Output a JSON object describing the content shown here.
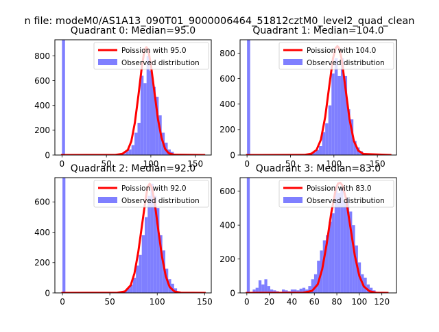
{
  "figure": {
    "suptitle": "n file: modeM0/AS1A13_090T01_9000006464_51812cztM0_level2_quad_clean"
  },
  "chart_data": [
    {
      "type": "bar",
      "title": "Quadrant 0: Median=95.0",
      "xlim": [
        -8,
        168
      ],
      "ylim": [
        0,
        930
      ],
      "xticks": [
        0,
        50,
        100,
        150
      ],
      "yticks": [
        0,
        200,
        400,
        600,
        800
      ],
      "bin_width": 3.4,
      "legend": {
        "placement": "top-right",
        "entries": [
          "Poission with 95.0",
          "Observed distribution"
        ]
      },
      "series": [
        {
          "name": "Observed distribution",
          "kind": "histogram",
          "color": "#7f7fff",
          "bins": [
            {
              "x": 0,
              "y": 930
            },
            {
              "x": 64.6,
              "y": 4
            },
            {
              "x": 68,
              "y": 10
            },
            {
              "x": 71.4,
              "y": 28
            },
            {
              "x": 74.8,
              "y": 45
            },
            {
              "x": 78.2,
              "y": 80
            },
            {
              "x": 81.6,
              "y": 180
            },
            {
              "x": 85,
              "y": 260
            },
            {
              "x": 88.4,
              "y": 640
            },
            {
              "x": 91.8,
              "y": 580
            },
            {
              "x": 95.2,
              "y": 800
            },
            {
              "x": 98.6,
              "y": 680
            },
            {
              "x": 102,
              "y": 550
            },
            {
              "x": 105.4,
              "y": 470
            },
            {
              "x": 108.8,
              "y": 320
            },
            {
              "x": 112.2,
              "y": 180
            },
            {
              "x": 115.6,
              "y": 100
            },
            {
              "x": 119,
              "y": 45
            },
            {
              "x": 122.4,
              "y": 25
            },
            {
              "x": 125.8,
              "y": 8
            }
          ]
        },
        {
          "name": "Poission with 95.0",
          "kind": "line",
          "color": "#ff0000",
          "points": [
            {
              "x": 0,
              "y": 0
            },
            {
              "x": 60,
              "y": 1
            },
            {
              "x": 68,
              "y": 10
            },
            {
              "x": 74,
              "y": 40
            },
            {
              "x": 78,
              "y": 110
            },
            {
              "x": 82,
              "y": 260
            },
            {
              "x": 86,
              "y": 480
            },
            {
              "x": 90,
              "y": 720
            },
            {
              "x": 93,
              "y": 850
            },
            {
              "x": 95,
              "y": 870
            },
            {
              "x": 97,
              "y": 850
            },
            {
              "x": 100,
              "y": 730
            },
            {
              "x": 104,
              "y": 510
            },
            {
              "x": 108,
              "y": 290
            },
            {
              "x": 112,
              "y": 140
            },
            {
              "x": 116,
              "y": 50
            },
            {
              "x": 120,
              "y": 15
            },
            {
              "x": 126,
              "y": 3
            },
            {
              "x": 160,
              "y": 0
            }
          ]
        }
      ]
    },
    {
      "type": "bar",
      "title": "Quadrant 1: Median=104.0",
      "xlim": [
        -8,
        172
      ],
      "ylim": [
        0,
        905
      ],
      "xticks": [
        0,
        50,
        100,
        150
      ],
      "yticks": [
        0,
        200,
        400,
        600,
        800
      ],
      "bin_width": 3.6,
      "legend": {
        "placement": "top-right",
        "entries": [
          "Poission with 104.0",
          "Observed distribution"
        ]
      },
      "series": [
        {
          "name": "Observed distribution",
          "kind": "histogram",
          "color": "#7f7fff",
          "bins": [
            {
              "x": 0,
              "y": 905
            },
            {
              "x": 68.4,
              "y": 4
            },
            {
              "x": 72,
              "y": 10
            },
            {
              "x": 75.6,
              "y": 20
            },
            {
              "x": 79.2,
              "y": 40
            },
            {
              "x": 82.8,
              "y": 70
            },
            {
              "x": 86.4,
              "y": 180
            },
            {
              "x": 90,
              "y": 250
            },
            {
              "x": 93.6,
              "y": 390
            },
            {
              "x": 97.2,
              "y": 640
            },
            {
              "x": 100.8,
              "y": 760
            },
            {
              "x": 104.4,
              "y": 620
            },
            {
              "x": 108,
              "y": 760
            },
            {
              "x": 111.6,
              "y": 620
            },
            {
              "x": 115.2,
              "y": 360
            },
            {
              "x": 118.8,
              "y": 280
            },
            {
              "x": 122.4,
              "y": 110
            },
            {
              "x": 126,
              "y": 60
            },
            {
              "x": 129.6,
              "y": 30
            },
            {
              "x": 133.2,
              "y": 15
            },
            {
              "x": 136.8,
              "y": 5
            }
          ]
        },
        {
          "name": "Poission with 104.0",
          "kind": "line",
          "color": "#ff0000",
          "points": [
            {
              "x": 0,
              "y": 0
            },
            {
              "x": 66,
              "y": 1
            },
            {
              "x": 74,
              "y": 10
            },
            {
              "x": 80,
              "y": 40
            },
            {
              "x": 85,
              "y": 120
            },
            {
              "x": 90,
              "y": 300
            },
            {
              "x": 95,
              "y": 560
            },
            {
              "x": 99,
              "y": 760
            },
            {
              "x": 102,
              "y": 840
            },
            {
              "x": 104,
              "y": 855
            },
            {
              "x": 106,
              "y": 840
            },
            {
              "x": 109,
              "y": 750
            },
            {
              "x": 113,
              "y": 540
            },
            {
              "x": 118,
              "y": 280
            },
            {
              "x": 123,
              "y": 110
            },
            {
              "x": 128,
              "y": 35
            },
            {
              "x": 134,
              "y": 8
            },
            {
              "x": 165,
              "y": 0
            }
          ]
        }
      ]
    },
    {
      "type": "bar",
      "title": "Quadrant 2: Median=92.0",
      "xlim": [
        -8,
        157
      ],
      "ylim": [
        0,
        760
      ],
      "xticks": [
        0,
        50,
        100,
        150
      ],
      "yticks": [
        0,
        200,
        400,
        600
      ],
      "bin_width": 3.1,
      "legend": {
        "placement": "top-right",
        "entries": [
          "Poission with 92.0",
          "Observed distribution"
        ]
      },
      "series": [
        {
          "name": "Observed distribution",
          "kind": "histogram",
          "color": "#7f7fff",
          "bins": [
            {
              "x": 0,
              "y": 760
            },
            {
              "x": 62,
              "y": 5
            },
            {
              "x": 65.1,
              "y": 15
            },
            {
              "x": 68.2,
              "y": 30
            },
            {
              "x": 71.3,
              "y": 55
            },
            {
              "x": 74.4,
              "y": 100
            },
            {
              "x": 77.5,
              "y": 180
            },
            {
              "x": 80.6,
              "y": 250
            },
            {
              "x": 83.7,
              "y": 380
            },
            {
              "x": 86.8,
              "y": 500
            },
            {
              "x": 89.9,
              "y": 640
            },
            {
              "x": 93,
              "y": 720
            },
            {
              "x": 96.1,
              "y": 640
            },
            {
              "x": 99.2,
              "y": 560
            },
            {
              "x": 102.3,
              "y": 380
            },
            {
              "x": 105.4,
              "y": 280
            },
            {
              "x": 108.5,
              "y": 160
            },
            {
              "x": 111.6,
              "y": 90
            },
            {
              "x": 114.7,
              "y": 60
            },
            {
              "x": 117.8,
              "y": 30
            },
            {
              "x": 120.9,
              "y": 10
            }
          ]
        },
        {
          "name": "Poission with 92.0",
          "kind": "line",
          "color": "#ff0000",
          "points": [
            {
              "x": 0,
              "y": 0
            },
            {
              "x": 58,
              "y": 1
            },
            {
              "x": 66,
              "y": 10
            },
            {
              "x": 72,
              "y": 50
            },
            {
              "x": 76,
              "y": 130
            },
            {
              "x": 80,
              "y": 270
            },
            {
              "x": 84,
              "y": 450
            },
            {
              "x": 88,
              "y": 630
            },
            {
              "x": 90,
              "y": 700
            },
            {
              "x": 92,
              "y": 720
            },
            {
              "x": 94,
              "y": 700
            },
            {
              "x": 97,
              "y": 610
            },
            {
              "x": 101,
              "y": 420
            },
            {
              "x": 105,
              "y": 240
            },
            {
              "x": 109,
              "y": 110
            },
            {
              "x": 113,
              "y": 40
            },
            {
              "x": 118,
              "y": 10
            },
            {
              "x": 125,
              "y": 1
            },
            {
              "x": 150,
              "y": 0
            }
          ]
        }
      ]
    },
    {
      "type": "bar",
      "title": "Quadrant 3: Median=83.0",
      "xlim": [
        -6,
        133
      ],
      "ylim": [
        0,
        680
      ],
      "xticks": [
        0,
        20,
        40,
        60,
        80,
        100,
        120
      ],
      "yticks": [
        0,
        200,
        400,
        600
      ],
      "bin_width": 2.6,
      "legend": {
        "placement": "top-right",
        "entries": [
          "Poission with 83.0",
          "Observed distribution"
        ]
      },
      "series": [
        {
          "name": "Observed distribution",
          "kind": "histogram",
          "color": "#7f7fff",
          "bins": [
            {
              "x": 0,
              "y": 680
            },
            {
              "x": 5.2,
              "y": 20
            },
            {
              "x": 7.8,
              "y": 30
            },
            {
              "x": 10.4,
              "y": 75
            },
            {
              "x": 13,
              "y": 50
            },
            {
              "x": 15.6,
              "y": 80
            },
            {
              "x": 18.2,
              "y": 40
            },
            {
              "x": 20.8,
              "y": 20
            },
            {
              "x": 23.4,
              "y": 15
            },
            {
              "x": 26,
              "y": 10
            },
            {
              "x": 28.6,
              "y": 5
            },
            {
              "x": 31.2,
              "y": 20
            },
            {
              "x": 33.8,
              "y": 15
            },
            {
              "x": 36.4,
              "y": 10
            },
            {
              "x": 39,
              "y": 20
            },
            {
              "x": 41.6,
              "y": 20
            },
            {
              "x": 44.2,
              "y": 15
            },
            {
              "x": 46.8,
              "y": 25
            },
            {
              "x": 49.4,
              "y": 30
            },
            {
              "x": 52,
              "y": 20
            },
            {
              "x": 54.6,
              "y": 40
            },
            {
              "x": 57.2,
              "y": 80
            },
            {
              "x": 59.8,
              "y": 110
            },
            {
              "x": 62.4,
              "y": 190
            },
            {
              "x": 65,
              "y": 250
            },
            {
              "x": 67.6,
              "y": 310
            },
            {
              "x": 70.2,
              "y": 340
            },
            {
              "x": 72.8,
              "y": 420
            },
            {
              "x": 75.4,
              "y": 470
            },
            {
              "x": 78,
              "y": 630
            },
            {
              "x": 80.6,
              "y": 590
            },
            {
              "x": 83.2,
              "y": 620
            },
            {
              "x": 85.8,
              "y": 540
            },
            {
              "x": 88.4,
              "y": 560
            },
            {
              "x": 91,
              "y": 480
            },
            {
              "x": 93.6,
              "y": 400
            },
            {
              "x": 96.2,
              "y": 280
            },
            {
              "x": 98.8,
              "y": 180
            },
            {
              "x": 101.4,
              "y": 110
            },
            {
              "x": 104,
              "y": 90
            },
            {
              "x": 106.6,
              "y": 50
            },
            {
              "x": 109.2,
              "y": 30
            },
            {
              "x": 111.8,
              "y": 15
            }
          ]
        },
        {
          "name": "Poission with 83.0",
          "kind": "line",
          "color": "#ff0000",
          "points": [
            {
              "x": 0,
              "y": 0
            },
            {
              "x": 50,
              "y": 1
            },
            {
              "x": 58,
              "y": 12
            },
            {
              "x": 63,
              "y": 50
            },
            {
              "x": 67,
              "y": 140
            },
            {
              "x": 71,
              "y": 290
            },
            {
              "x": 75,
              "y": 470
            },
            {
              "x": 79,
              "y": 610
            },
            {
              "x": 81,
              "y": 645
            },
            {
              "x": 83,
              "y": 650
            },
            {
              "x": 85,
              "y": 635
            },
            {
              "x": 88,
              "y": 560
            },
            {
              "x": 92,
              "y": 390
            },
            {
              "x": 96,
              "y": 220
            },
            {
              "x": 100,
              "y": 100
            },
            {
              "x": 104,
              "y": 38
            },
            {
              "x": 109,
              "y": 10
            },
            {
              "x": 115,
              "y": 1
            },
            {
              "x": 125,
              "y": 0
            }
          ]
        }
      ]
    }
  ]
}
